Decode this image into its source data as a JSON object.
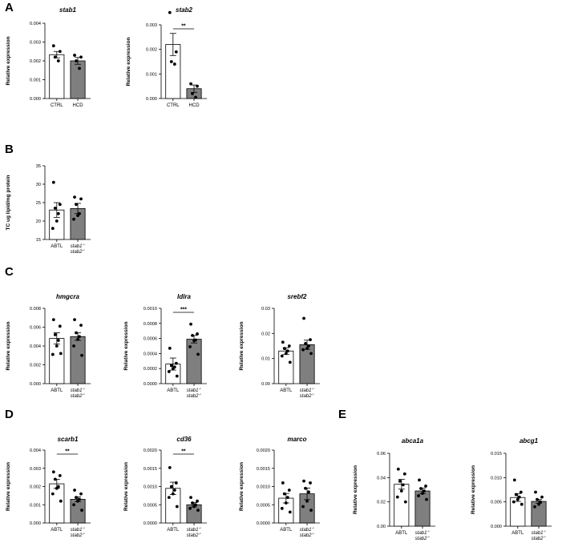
{
  "panel_letters": [
    "A",
    "B",
    "C",
    "D",
    "E"
  ],
  "colors": {
    "bar_ctrl": "#ffffff",
    "bar_treat": "#7f7f7f",
    "stroke": "#000000",
    "point": "#000000"
  },
  "chart_data": [
    {
      "id": "stab1",
      "panel": "A",
      "type": "bar",
      "title": "stab1",
      "ylabel": "Relative expression",
      "ylim": [
        0,
        0.004
      ],
      "yticks": [
        "0.000",
        "0.001",
        "0.002",
        "0.003",
        "0.004"
      ],
      "categories": [
        "CTRL",
        "HCD"
      ],
      "values": [
        0.00233,
        0.002
      ],
      "sem": [
        0.00017,
        0.00018
      ],
      "points": [
        [
          0.0028,
          0.0025,
          0.0022,
          0.002
        ],
        [
          0.0023,
          0.0022,
          0.002,
          0.0016
        ]
      ],
      "significance": ""
    },
    {
      "id": "stab2",
      "panel": "",
      "type": "bar",
      "title": "stab2",
      "ylabel": "Relative expression",
      "ylim": [
        0,
        0.003
      ],
      "yticks": [
        "0.000",
        "0.001",
        "0.002",
        "0.003"
      ],
      "categories": [
        "CTRL",
        "HCD"
      ],
      "values": [
        0.0022,
        0.0004
      ],
      "sem": [
        0.00045,
        0.00015
      ],
      "points": [
        [
          0.0035,
          0.0019,
          0.0015,
          0.0014
        ],
        [
          0.0006,
          0.0005,
          0.0002,
          5e-05
        ]
      ],
      "significance": "**"
    },
    {
      "id": "tc",
      "panel": "B",
      "type": "bar",
      "title": "",
      "ylabel": "TC ug lipid/mg protein",
      "ylim": [
        15,
        35
      ],
      "yticks": [
        "15",
        "20",
        "25",
        "30",
        "35"
      ],
      "categories": [
        "ABTL",
        "stab1-/-|stab2-/-"
      ],
      "values": [
        23.0,
        23.4
      ],
      "sem": [
        2.0,
        1.4
      ],
      "points": [
        [
          30.5,
          24.5,
          23.5,
          22.0,
          20.0,
          18.0
        ],
        [
          26.5,
          26.0,
          24.5,
          22.0,
          21.5,
          20.5
        ]
      ],
      "significance": ""
    },
    {
      "id": "hmgcra",
      "panel": "C",
      "type": "bar",
      "title": "hmgcra",
      "ylabel": "Relative expression",
      "ylim": [
        0,
        0.008
      ],
      "yticks": [
        "0.000",
        "0.002",
        "0.004",
        "0.006",
        "0.008"
      ],
      "categories": [
        "ABTL",
        "stab1-/-|stab2-/-"
      ],
      "values": [
        0.0048,
        0.005
      ],
      "sem": [
        0.0006,
        0.0004
      ],
      "points": [
        [
          0.0068,
          0.0061,
          0.0052,
          0.0046,
          0.004,
          0.0031,
          0.0032
        ],
        [
          0.0068,
          0.0062,
          0.0054,
          0.005,
          0.0047,
          0.004,
          0.003
        ]
      ],
      "significance": ""
    },
    {
      "id": "ldlra",
      "panel": "",
      "type": "bar",
      "title": "ldlra",
      "ylabel": "Relative expression",
      "ylim": [
        0,
        0.001
      ],
      "yticks": [
        "0.0000",
        "0.0002",
        "0.0004",
        "0.0006",
        "0.0008",
        "0.0010"
      ],
      "categories": [
        "ABTL",
        "stab1-/-|stab2-/-"
      ],
      "values": [
        0.00026,
        0.00059
      ],
      "sem": [
        8e-05,
        5e-05
      ],
      "points": [
        [
          0.00047,
          0.00027,
          0.00024,
          0.00022,
          0.0002,
          0.00016,
          0.0001
        ],
        [
          0.00079,
          0.00066,
          0.00064,
          0.00058,
          0.00057,
          0.00049,
          0.00039
        ]
      ],
      "significance": "***"
    },
    {
      "id": "srebf2",
      "panel": "",
      "type": "bar",
      "title": "srebf2",
      "ylabel": "Relative expression",
      "ylim": [
        0,
        0.03
      ],
      "yticks": [
        "0.00",
        "0.01",
        "0.02",
        "0.03"
      ],
      "categories": [
        "ABTL",
        "stab1-/-|stab2-/-"
      ],
      "values": [
        0.013,
        0.0155
      ],
      "sem": [
        0.0013,
        0.0018
      ],
      "points": [
        [
          0.0165,
          0.015,
          0.014,
          0.013,
          0.012,
          0.011,
          0.0085
        ],
        [
          0.026,
          0.0175,
          0.016,
          0.015,
          0.014,
          0.0135,
          0.012
        ]
      ],
      "significance": ""
    },
    {
      "id": "scarb1",
      "panel": "D",
      "type": "bar",
      "title": "scarb1",
      "ylabel": "Relative expression",
      "ylim": [
        0,
        0.004
      ],
      "yticks": [
        "0.000",
        "0.001",
        "0.002",
        "0.003",
        "0.004"
      ],
      "categories": [
        "ABTL",
        "stab1-/-|stab2-/-"
      ],
      "values": [
        0.00215,
        0.0013
      ],
      "sem": [
        0.00025,
        0.00014
      ],
      "points": [
        [
          0.0028,
          0.0026,
          0.0024,
          0.002,
          0.0019,
          0.0016,
          0.0012
        ],
        [
          0.0018,
          0.0016,
          0.0014,
          0.0013,
          0.0012,
          0.001,
          0.0007
        ]
      ],
      "significance": "**"
    },
    {
      "id": "cd36",
      "panel": "",
      "type": "bar",
      "title": "cd36",
      "ylabel": "Relative expression",
      "ylim": [
        0,
        0.002
      ],
      "yticks": [
        "0.0000",
        "0.0005",
        "0.0010",
        "0.0015",
        "0.0020"
      ],
      "categories": [
        "ABTL",
        "stab1-/-|stab2-/-"
      ],
      "values": [
        0.00095,
        0.0005
      ],
      "sem": [
        0.00017,
        6e-05
      ],
      "points": [
        [
          0.00152,
          0.0011,
          0.001,
          0.0009,
          0.0008,
          0.0007,
          0.00045
        ],
        [
          0.0007,
          0.0006,
          0.00055,
          0.0005,
          0.00045,
          0.0004,
          0.00035
        ]
      ],
      "significance": "**"
    },
    {
      "id": "marco",
      "panel": "",
      "type": "bar",
      "title": "marco",
      "ylabel": "Relative expression",
      "ylim": [
        0,
        0.002
      ],
      "yticks": [
        "0.0000",
        "0.0005",
        "0.0010",
        "0.0015",
        "0.0020"
      ],
      "categories": [
        "ABTL",
        "stab1-/-|stab2-/-"
      ],
      "values": [
        0.00068,
        0.0008
      ],
      "sem": [
        0.00013,
        0.00016
      ],
      "points": [
        [
          0.0011,
          0.0009,
          0.0008,
          0.0007,
          0.00055,
          0.0004,
          0.0003
        ],
        [
          0.00115,
          0.0011,
          0.00095,
          0.00085,
          0.0006,
          0.00045,
          0.00035
        ]
      ],
      "significance": ""
    },
    {
      "id": "abca1a",
      "panel": "E",
      "type": "bar",
      "title": "abca1a",
      "ylabel": "Relative expression",
      "ylim": [
        0,
        0.06
      ],
      "yticks": [
        "0.00",
        "0.02",
        "0.04",
        "0.06"
      ],
      "categories": [
        "ABTL",
        "stab1-/-|stab2-/-"
      ],
      "values": [
        0.0345,
        0.029
      ],
      "sem": [
        0.004,
        0.0023
      ],
      "points": [
        [
          0.047,
          0.043,
          0.037,
          0.034,
          0.029,
          0.024,
          0.02
        ],
        [
          0.038,
          0.033,
          0.031,
          0.029,
          0.027,
          0.025,
          0.022
        ]
      ],
      "significance": ""
    },
    {
      "id": "abcg1",
      "panel": "",
      "type": "bar",
      "title": "abcg1",
      "ylabel": "Relative expression",
      "ylim": [
        0,
        0.015
      ],
      "yticks": [
        "0.000",
        "0.005",
        "0.010",
        "0.015"
      ],
      "categories": [
        "ABTL",
        "stab1-/-|stab2-/-"
      ],
      "values": [
        0.0059,
        0.0051
      ],
      "sem": [
        0.0008,
        0.0004
      ],
      "points": [
        [
          0.0095,
          0.007,
          0.0065,
          0.006,
          0.0055,
          0.005,
          0.0045
        ],
        [
          0.007,
          0.006,
          0.0055,
          0.005,
          0.0045,
          0.004
        ]
      ],
      "significance": ""
    }
  ]
}
